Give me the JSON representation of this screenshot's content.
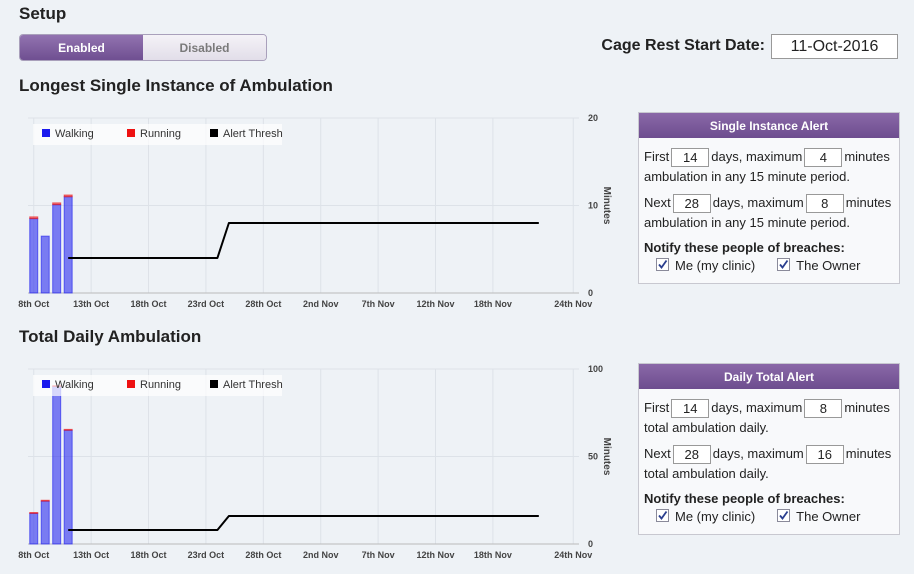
{
  "setup": {
    "title": "Setup",
    "toggle": [
      "Enabled",
      "Disabled"
    ],
    "date_label": "Cage Rest Start Date:",
    "date_value": "11-Oct-2016"
  },
  "chart_data": [
    {
      "type": "bar",
      "title": "Longest Single Instance of Ambulation",
      "y_label": "Minutes",
      "stacked": true,
      "grid": true,
      "legend": "top-left",
      "xlim": [
        -0.5,
        47.5
      ],
      "xticks": [
        {
          "value": 0,
          "label": "8th Oct"
        },
        {
          "value": 5,
          "label": "13th Oct"
        },
        {
          "value": 10,
          "label": "18th Oct"
        },
        {
          "value": 15,
          "label": "23rd Oct"
        },
        {
          "value": 20,
          "label": "28th Oct"
        },
        {
          "value": 25,
          "label": "2nd Nov"
        },
        {
          "value": 30,
          "label": "7th Nov"
        },
        {
          "value": 35,
          "label": "12th Nov"
        },
        {
          "value": 40,
          "label": "18th Nov"
        },
        {
          "value": 47,
          "label": "24th Nov"
        }
      ],
      "ylim": [
        0,
        20
      ],
      "yticks": [
        0,
        10,
        20
      ],
      "series": [
        {
          "name": "Walking",
          "color": "#1a1aee",
          "x": [
            0,
            1,
            2,
            3
          ],
          "values": [
            8.5,
            6.5,
            10.1,
            11.0
          ]
        },
        {
          "name": "Running",
          "color": "#ee1111",
          "x": [
            0,
            1,
            2,
            3
          ],
          "values": [
            0.2,
            0,
            0.2,
            0.2
          ]
        },
        {
          "name": "Alert Thresh",
          "type": "line",
          "color": "#000000",
          "x": [
            3,
            16,
            17,
            44
          ],
          "values": [
            4,
            4,
            8,
            8
          ]
        }
      ]
    },
    {
      "type": "bar",
      "title": "Total Daily Ambulation",
      "y_label": "Minutes",
      "stacked": true,
      "grid": true,
      "legend": "top-left",
      "xlim": [
        -0.5,
        47.5
      ],
      "xticks": [
        {
          "value": 0,
          "label": "8th Oct"
        },
        {
          "value": 5,
          "label": "13th Oct"
        },
        {
          "value": 10,
          "label": "18th Oct"
        },
        {
          "value": 15,
          "label": "23rd Oct"
        },
        {
          "value": 20,
          "label": "28th Oct"
        },
        {
          "value": 25,
          "label": "2nd Nov"
        },
        {
          "value": 30,
          "label": "7th Nov"
        },
        {
          "value": 35,
          "label": "12th Nov"
        },
        {
          "value": 40,
          "label": "18th Nov"
        },
        {
          "value": 47,
          "label": "24th Nov"
        }
      ],
      "ylim": [
        0,
        100
      ],
      "yticks": [
        0,
        50,
        100
      ],
      "series": [
        {
          "name": "Walking",
          "color": "#1a1aee",
          "x": [
            0,
            1,
            2,
            3
          ],
          "values": [
            17.5,
            24.5,
            90,
            65
          ]
        },
        {
          "name": "Running",
          "color": "#ee1111",
          "x": [
            0,
            1,
            2,
            3
          ],
          "values": [
            0.5,
            0.5,
            0.5,
            0.5
          ]
        },
        {
          "name": "Alert Thresh",
          "type": "line",
          "color": "#000000",
          "x": [
            3,
            16,
            17,
            44
          ],
          "values": [
            8,
            8,
            16,
            16
          ]
        }
      ]
    }
  ],
  "alerts": [
    {
      "title": "Single Instance Alert",
      "rows": [
        {
          "prefix": "First",
          "days": 14,
          "middle": "days, maximum",
          "minutes": 4,
          "suffix": "minutes",
          "note": "ambulation in any 15 minute period."
        },
        {
          "prefix": "Next",
          "days": 28,
          "middle": "days, maximum",
          "minutes": 8,
          "suffix": "minutes",
          "note": "ambulation in any 15 minute period."
        }
      ],
      "notify_label": "Notify these people of breaches:",
      "recipients": [
        "Me (my clinic)",
        "The Owner"
      ]
    },
    {
      "title": "Daily Total Alert",
      "rows": [
        {
          "prefix": "First",
          "days": 14,
          "middle": "days, maximum",
          "minutes": 8,
          "suffix": "minutes",
          "note": "total ambulation daily."
        },
        {
          "prefix": "Next",
          "days": 28,
          "middle": "days, maximum",
          "minutes": 16,
          "suffix": "minutes",
          "note": "total ambulation daily."
        }
      ],
      "notify_label": "Notify these people of breaches:",
      "recipients": [
        "Me (my clinic)",
        "The Owner"
      ]
    }
  ]
}
